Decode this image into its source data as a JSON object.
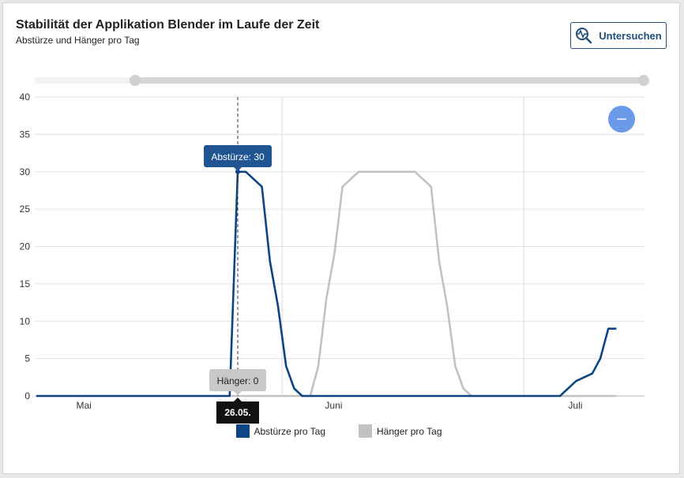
{
  "header": {
    "title": "Stabilität der Applikation Blender im Laufe der Zeit",
    "subtitle": "Abstürze und Hänger pro Tag",
    "button_label": "Untersuchen"
  },
  "icons": {
    "button_icon": "search-pulse-icon",
    "zoom_reset": "minus-icon"
  },
  "colors": {
    "crashes": "#0d4585",
    "hangs": "#c2c2c2",
    "accent": "#1f4e79",
    "reset": "#6b9be8"
  },
  "chart_data": {
    "type": "line",
    "x_axis": {
      "tick_labels": [
        "Mai",
        "Juni",
        "Juli"
      ]
    },
    "y_axis": {
      "min": 0,
      "max": 40,
      "ticks": [
        0,
        5,
        10,
        15,
        20,
        25,
        30,
        35,
        40
      ]
    },
    "grid": true,
    "legend_position": "bottom",
    "series": [
      {
        "name": "Abstürze pro Tag",
        "color": "#0d4585",
        "points": [
          [
            "01.05.",
            0
          ],
          [
            "25.05.",
            0
          ],
          [
            "26.05.",
            30
          ],
          [
            "27.05.",
            30
          ],
          [
            "29.05.",
            28
          ],
          [
            "30.05.",
            18
          ],
          [
            "31.05.",
            12
          ],
          [
            "01.06.",
            4
          ],
          [
            "02.06.",
            1
          ],
          [
            "03.06.",
            0
          ],
          [
            "30.06.",
            0
          ],
          [
            "05.07.",
            0
          ],
          [
            "07.07.",
            2
          ],
          [
            "09.07.",
            3
          ],
          [
            "10.07.",
            5
          ],
          [
            "11.07.",
            9
          ],
          [
            "12.07.",
            9
          ]
        ]
      },
      {
        "name": "Hänger pro Tag",
        "color": "#c2c2c2",
        "points": [
          [
            "01.05.",
            0
          ],
          [
            "04.06.",
            0
          ],
          [
            "05.06.",
            4
          ],
          [
            "06.06.",
            13
          ],
          [
            "07.06.",
            19
          ],
          [
            "08.06.",
            28
          ],
          [
            "10.06.",
            30
          ],
          [
            "17.06.",
            30
          ],
          [
            "19.06.",
            28
          ],
          [
            "20.06.",
            18
          ],
          [
            "21.06.",
            12
          ],
          [
            "22.06.",
            4
          ],
          [
            "23.06.",
            1
          ],
          [
            "24.06.",
            0
          ],
          [
            "12.07.",
            0
          ]
        ]
      }
    ],
    "tooltip": {
      "date_label": "26.05.",
      "crashes_label": "Abstürze: 30",
      "hangs_label": "Hänger: 0"
    }
  }
}
